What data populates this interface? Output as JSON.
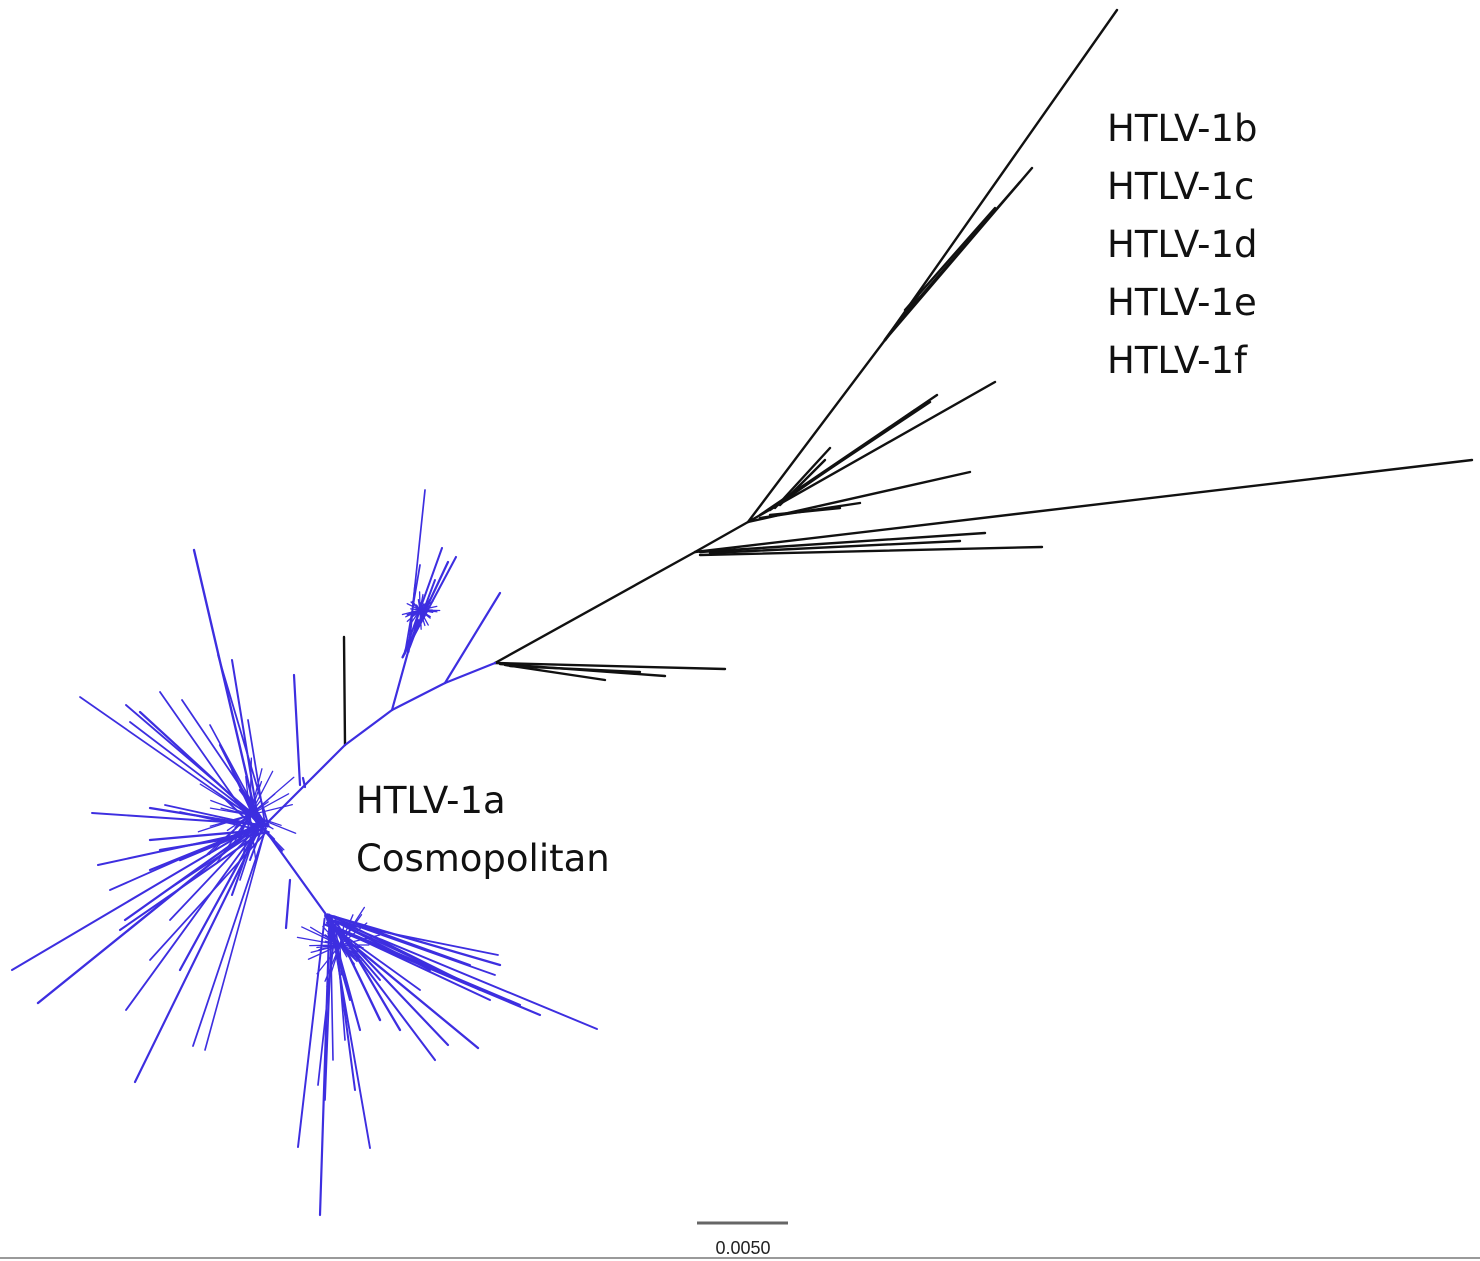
{
  "clades": {
    "non_cosmopolitan": {
      "labels": [
        "HTLV-1b",
        "HTLV-1c",
        "HTLV-1d",
        "HTLV-1e",
        "HTLV-1f"
      ],
      "color": "#111111"
    },
    "cosmopolitan": {
      "labels": [
        "HTLV-1a",
        "Cosmopolitan"
      ],
      "color": "#3d2ee0"
    }
  },
  "scale_bar": {
    "label": "0.0050"
  }
}
